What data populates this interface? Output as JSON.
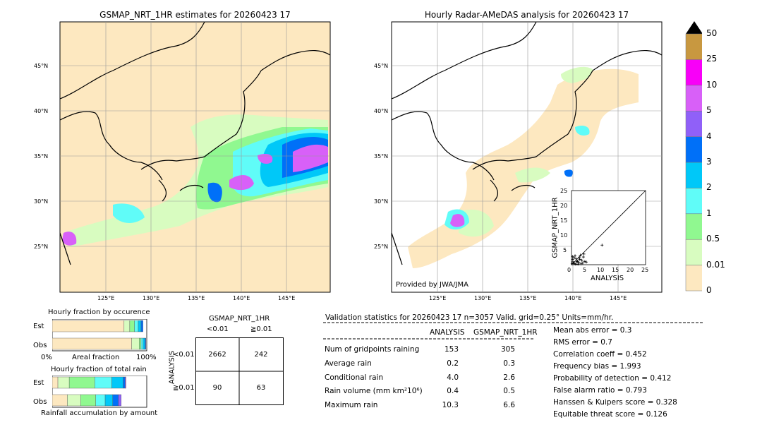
{
  "left_map": {
    "title": "GSMAP_NRT_1HR estimates for 20260423 17",
    "lat_labels": [
      "45°N",
      "40°N",
      "35°N",
      "30°N",
      "25°N"
    ],
    "lon_labels": [
      "125°E",
      "130°E",
      "135°E",
      "140°E",
      "145°E"
    ]
  },
  "right_map": {
    "title": "Hourly Radar-AMeDAS analysis for 20260423 17",
    "lat_labels": [
      "45°N",
      "40°N",
      "35°N",
      "30°N",
      "25°N"
    ],
    "lon_labels": [
      "125°E",
      "130°E",
      "135°E",
      "140°E",
      "145°E"
    ],
    "credit": "Provided by JWA/JMA"
  },
  "inset_scatter": {
    "ylabel": "GSMAP_NRT_1HR",
    "xlabel": "ANALYSIS",
    "ticks": [
      "0",
      "5",
      "10",
      "15",
      "20",
      "25"
    ]
  },
  "colorbar": {
    "labels": [
      "0",
      "0.01",
      "0.5",
      "1",
      "2",
      "3",
      "4",
      "5",
      "10",
      "25",
      "50"
    ],
    "colors": [
      "#fde8c0",
      "#d8fcc0",
      "#90f890",
      "#60fcf8",
      "#00c8f8",
      "#0070f8",
      "#9060f8",
      "#d860f8",
      "#f800f8",
      "#c89840",
      "#000000"
    ]
  },
  "chart_data": [
    {
      "type": "bar",
      "title": "Hourly fraction by occurence",
      "categories": [
        "Est",
        "Obs"
      ],
      "xlabel": "Areal fraction",
      "xtick_labels": [
        "0%",
        "100%"
      ],
      "series": [
        {
          "values": [
            0.76,
            0.84
          ]
        },
        {
          "values": [
            0.06,
            0.08
          ]
        },
        {
          "values": [
            0.05,
            0.02
          ]
        },
        {
          "values": [
            0.04,
            0.02
          ]
        },
        {
          "values": [
            0.03,
            0.02
          ]
        },
        {
          "values": [
            0.02,
            0.01
          ]
        }
      ]
    },
    {
      "type": "bar",
      "title": "Hourly fraction of total rain",
      "categories": [
        "Est",
        "Obs"
      ],
      "xlabel": "Rainfall accumulation by amount",
      "series": [
        {
          "values": [
            0.06,
            0.16
          ]
        },
        {
          "values": [
            0.12,
            0.14
          ]
        },
        {
          "values": [
            0.27,
            0.16
          ]
        },
        {
          "values": [
            0.18,
            0.1
          ]
        },
        {
          "values": [
            0.12,
            0.08
          ]
        },
        {
          "values": [
            0.02,
            0.06
          ]
        },
        {
          "values": [
            0.01,
            0.03
          ]
        }
      ]
    },
    {
      "type": "table",
      "title": "GSMAP_NRT_1HR",
      "col_labels": [
        "<0.01",
        "≧0.01"
      ],
      "row_labels": [
        "<0.01",
        "≧0.01"
      ],
      "side_label": "ANALYSIS",
      "cells": [
        [
          "2662",
          "242"
        ],
        [
          "90",
          "63"
        ]
      ]
    },
    {
      "type": "scatter",
      "xlabel": "ANALYSIS",
      "ylabel": "GSMAP_NRT_1HR",
      "xlim": [
        0,
        25
      ],
      "ylim": [
        0,
        25
      ],
      "points": [
        [
          0.2,
          0.3
        ],
        [
          0.5,
          1.0
        ],
        [
          1.0,
          0.4
        ],
        [
          1.5,
          2.0
        ],
        [
          2.0,
          1.2
        ],
        [
          2.5,
          0.8
        ],
        [
          3.0,
          3.2
        ],
        [
          3.5,
          1.5
        ],
        [
          4.0,
          2.6
        ],
        [
          0.8,
          2.4
        ],
        [
          1.2,
          3.0
        ],
        [
          2.2,
          0.2
        ],
        [
          2.8,
          1.8
        ],
        [
          3.8,
          0.6
        ],
        [
          4.5,
          1.1
        ],
        [
          0.4,
          1.8
        ],
        [
          1.8,
          1.0
        ],
        [
          2.6,
          2.4
        ],
        [
          3.2,
          0.3
        ],
        [
          0.6,
          0.6
        ],
        [
          5.0,
          0.9
        ],
        [
          10.3,
          6.6
        ],
        [
          1.4,
          0.2
        ],
        [
          0.3,
          2.8
        ],
        [
          4.2,
          3.6
        ]
      ]
    }
  ],
  "validation": {
    "header": "Validation statistics for 20260423 17  n=3057 Valid. grid=0.25°  Units=mm/hr.",
    "col_analysis": "ANALYSIS",
    "col_gsmap": "GSMAP_NRT_1HR",
    "rows": [
      {
        "label": "Num of gridpoints raining",
        "analysis": "153",
        "gsmap": "305"
      },
      {
        "label": "Average rain",
        "analysis": "0.2",
        "gsmap": "0.3"
      },
      {
        "label": "Conditional rain",
        "analysis": "4.0",
        "gsmap": "2.6"
      },
      {
        "label": "Rain volume (mm km²10⁶)",
        "analysis": "0.4",
        "gsmap": "0.5"
      },
      {
        "label": "Maximum rain",
        "analysis": "10.3",
        "gsmap": "6.6"
      }
    ],
    "scores": [
      "Mean abs error =    0.3",
      "RMS error =    0.7",
      "Correlation coeff =  0.452",
      "Frequency bias =  1.993",
      "Probability of detection =  0.412",
      "False alarm ratio =  0.793",
      "Hanssen & Kuipers score =  0.328",
      "Equitable threat score =  0.126"
    ]
  }
}
